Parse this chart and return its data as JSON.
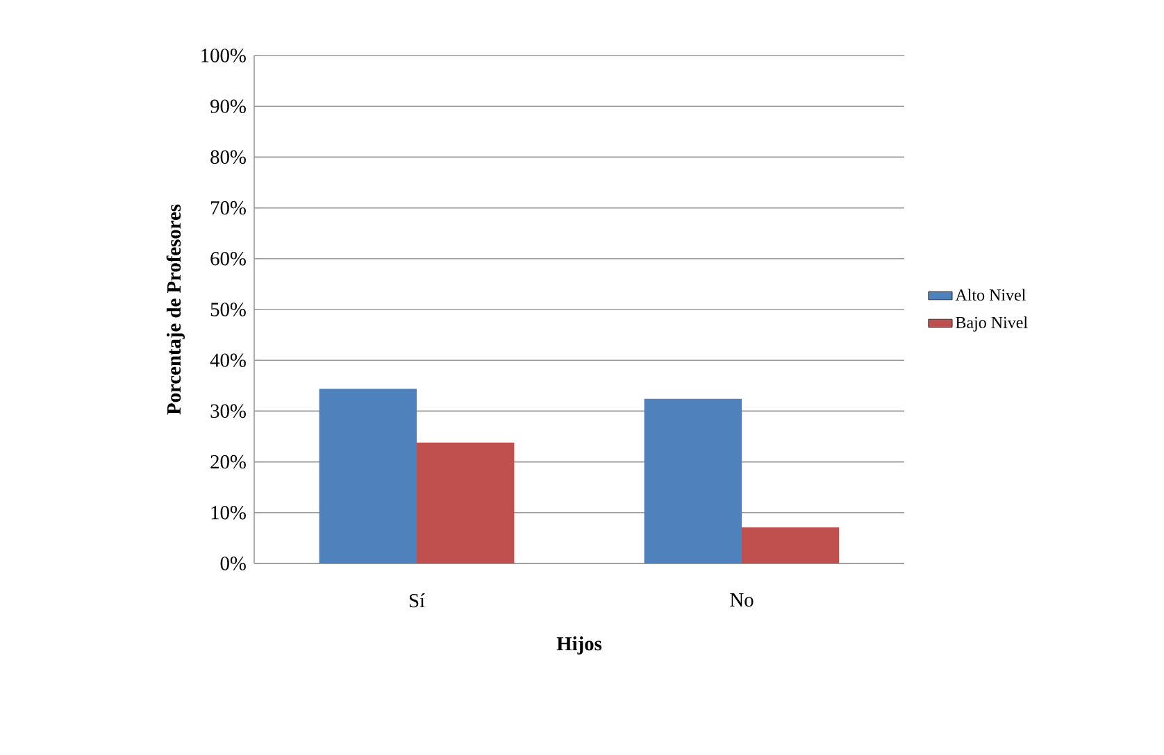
{
  "chart_data": {
    "type": "bar",
    "xlabel": "Hijos",
    "ylabel": "Porcentaje de Profesores",
    "categories": [
      "Sí",
      "No"
    ],
    "series": [
      {
        "name": "Alto Nivel",
        "color": "#4f81bd",
        "values": [
          34.4,
          32.4
        ]
      },
      {
        "name": "Bajo Nivel",
        "color": "#c0504d",
        "values": [
          23.8,
          7.1
        ]
      }
    ],
    "ylim": [
      0,
      100
    ],
    "yticks": [
      {
        "value": 0,
        "label": "0%"
      },
      {
        "value": 10,
        "label": "10%"
      },
      {
        "value": 20,
        "label": "20%"
      },
      {
        "value": 30,
        "label": "30%"
      },
      {
        "value": 40,
        "label": "40%"
      },
      {
        "value": 50,
        "label": "50%"
      },
      {
        "value": 60,
        "label": "60%"
      },
      {
        "value": 70,
        "label": "70%"
      },
      {
        "value": 80,
        "label": "80%"
      },
      {
        "value": 90,
        "label": "90%"
      },
      {
        "value": 100,
        "label": "100%"
      }
    ],
    "grid": "y",
    "legend": "right"
  }
}
